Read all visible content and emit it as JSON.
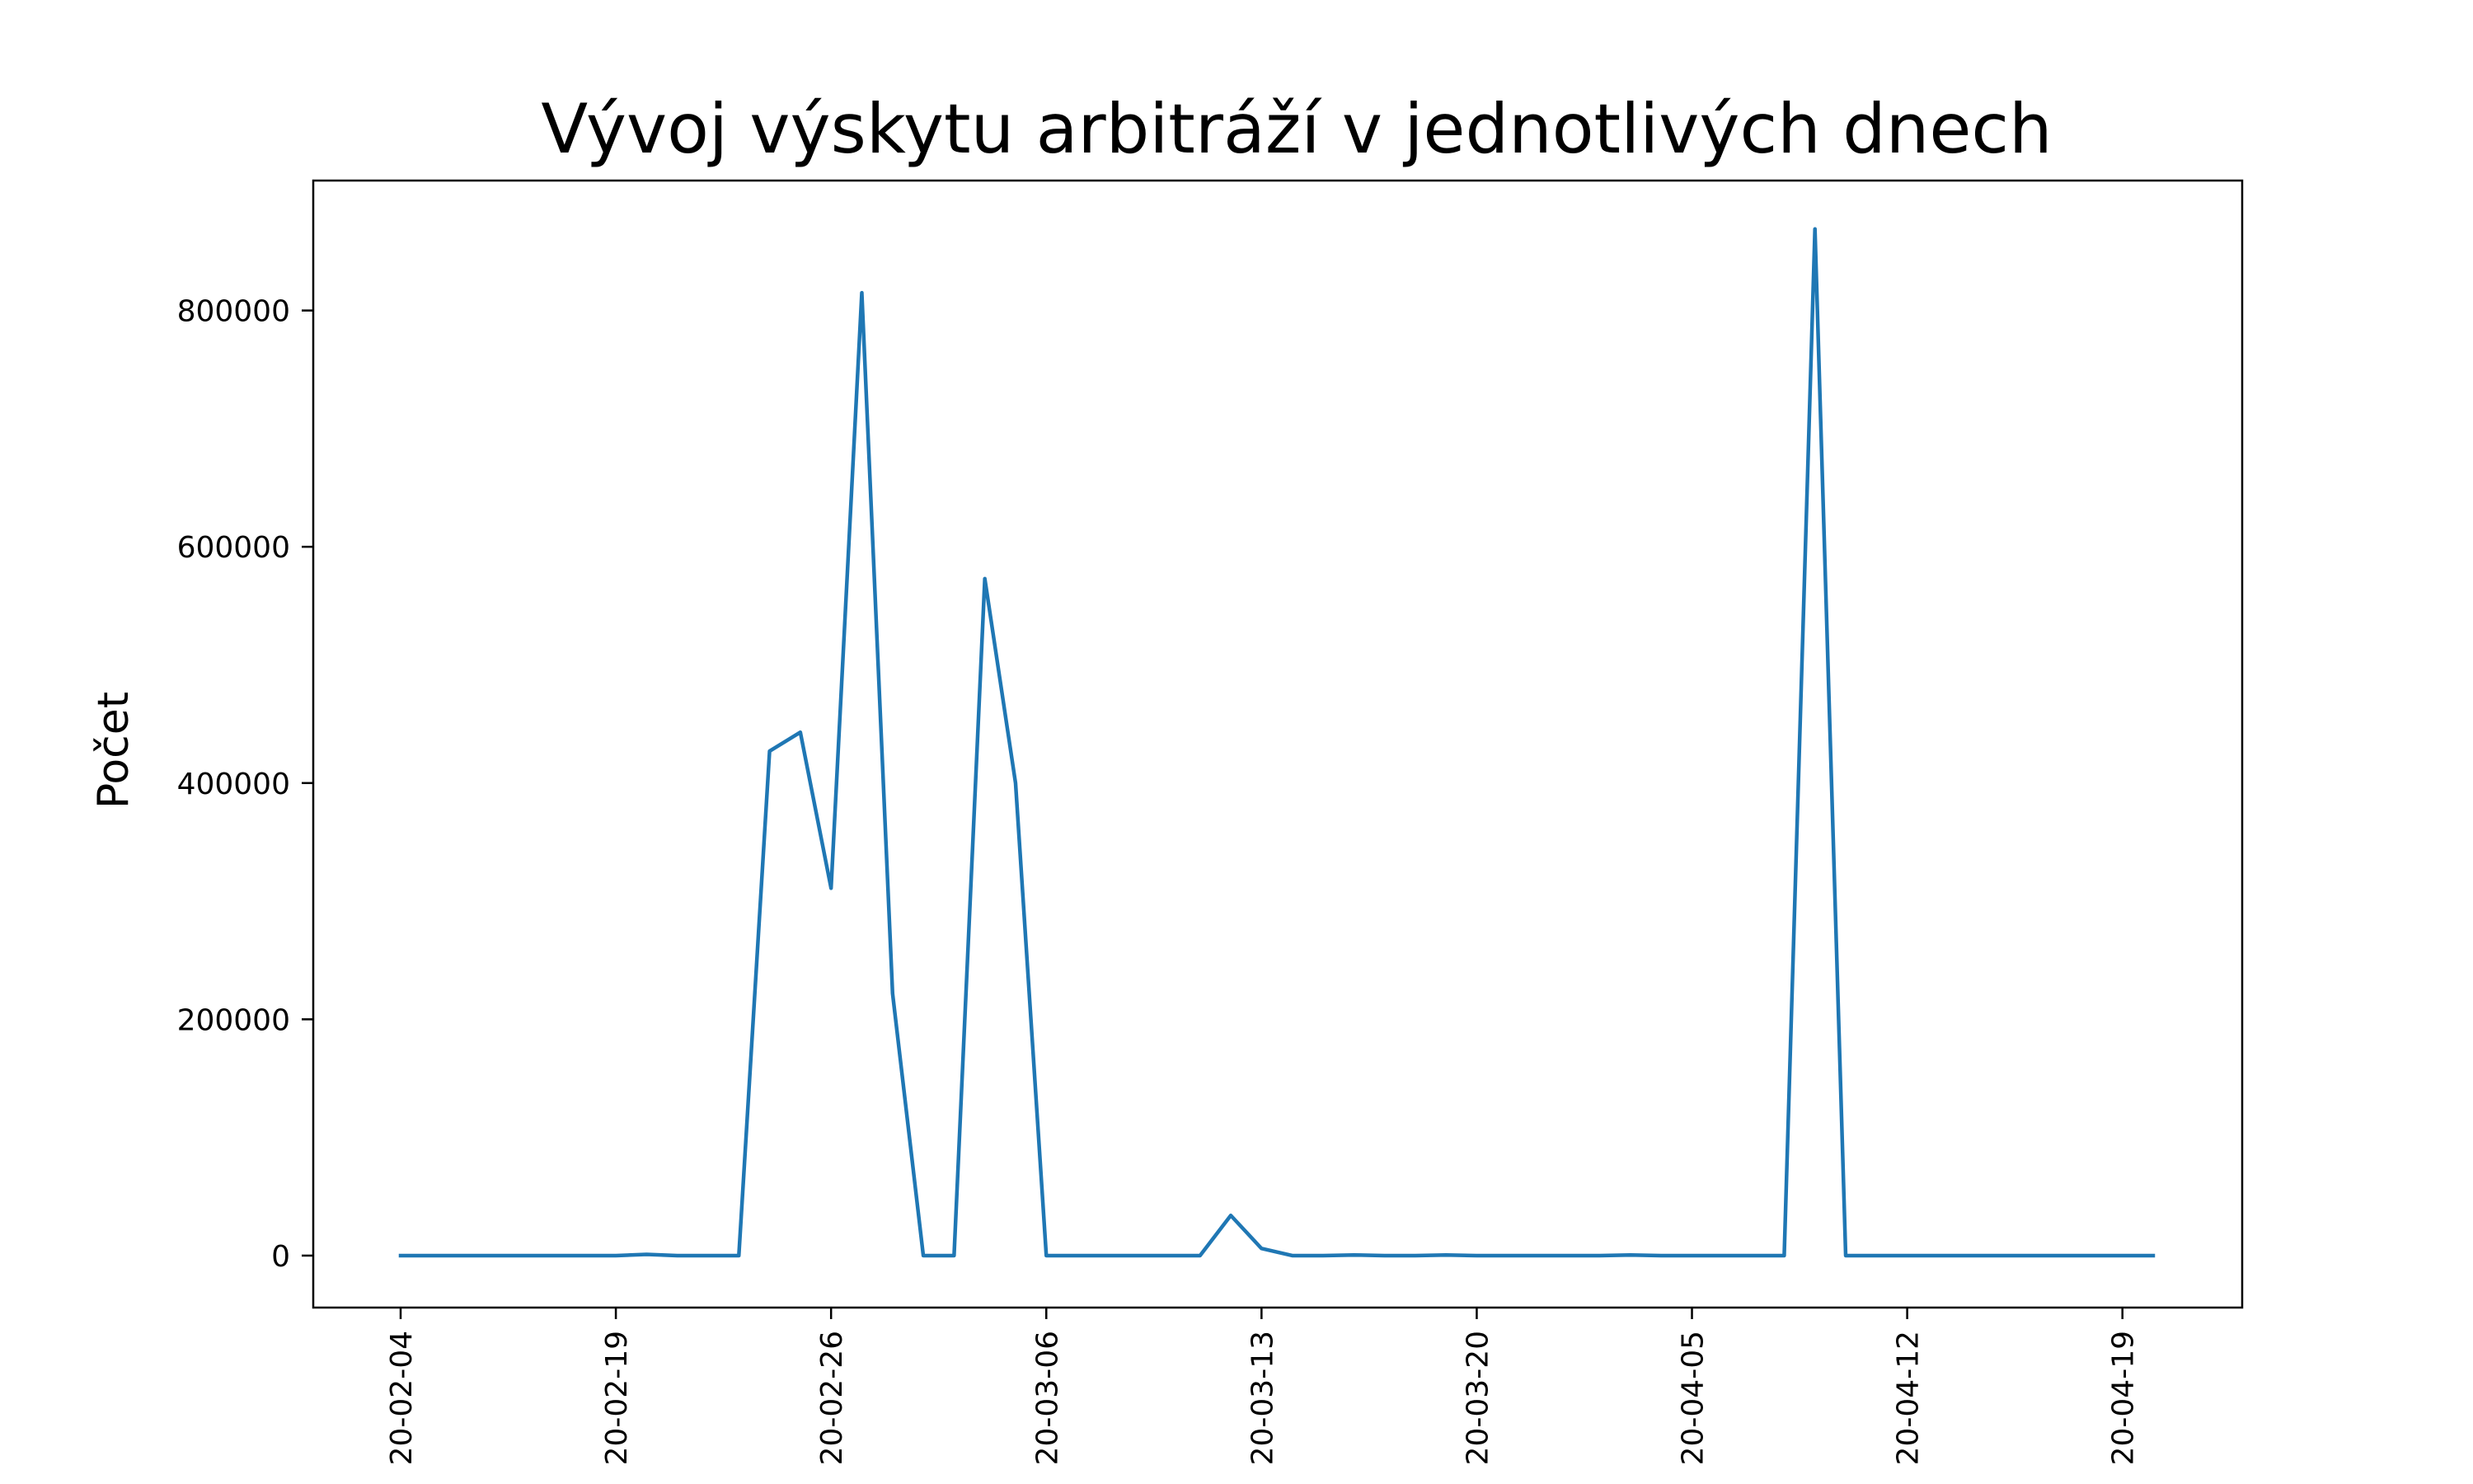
{
  "chart_data": {
    "type": "line",
    "title": "Vývoj výskytu arbitráží v jednotlivých dnech",
    "xlabel": "",
    "ylabel": "Počet",
    "x_ticks": [
      "20-02-04",
      "20-02-19",
      "20-02-26",
      "20-03-06",
      "20-03-13",
      "20-03-20",
      "20-04-05",
      "20-04-12",
      "20-04-19"
    ],
    "y_ticks": [
      0,
      200000,
      400000,
      600000,
      800000
    ],
    "ylim": [
      -44000,
      910000
    ],
    "grid": false,
    "legend": "none",
    "colors": {
      "line": "#1f77b4",
      "axes": "#000000"
    },
    "series": [
      {
        "values": [
          0,
          0,
          0,
          0,
          0,
          0,
          0,
          0,
          1000,
          0,
          0,
          0,
          427000,
          443000,
          311000,
          815000,
          222000,
          0,
          0,
          573000,
          400000,
          0,
          0,
          0,
          0,
          0,
          0,
          34000,
          6000,
          0,
          0,
          500,
          0,
          0,
          500,
          0,
          0,
          0,
          0,
          0,
          500,
          0,
          0,
          0,
          0,
          0,
          869000,
          0,
          0,
          0,
          0,
          0,
          0,
          0,
          0,
          0,
          0,
          0
        ]
      }
    ]
  }
}
